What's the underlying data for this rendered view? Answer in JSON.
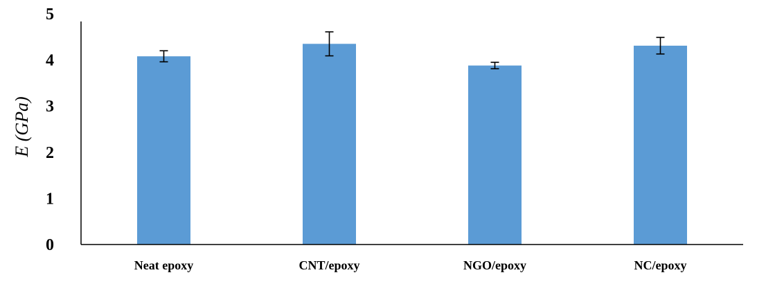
{
  "chart_data": {
    "type": "bar",
    "title": "",
    "xlabel": "",
    "ylabel": "E (GPa)",
    "categories": [
      "Neat epoxy",
      "CNT/epoxy",
      "NGO/epoxy",
      "NC/epoxy"
    ],
    "values": [
      4.08,
      4.35,
      3.88,
      4.31
    ],
    "error": [
      0.12,
      0.26,
      0.07,
      0.18
    ],
    "ylim": [
      0,
      5
    ],
    "yticks": [
      "0",
      "1",
      "2",
      "3",
      "4",
      "5"
    ],
    "grid": false,
    "legend": "none",
    "colors": {
      "bar": "#5b9bd5",
      "axis": "#000000",
      "error_bar": "#000000"
    }
  }
}
